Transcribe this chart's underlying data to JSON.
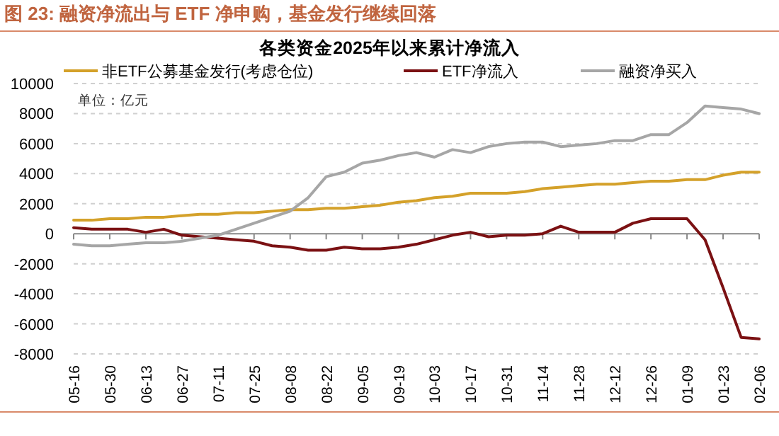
{
  "chart_data": {
    "type": "line",
    "title": "图 23: 融资净流出与 ETF 净申购，基金发行继续回落",
    "subtitle": "各类资金2025年以来累计净流入",
    "categories": [
      "05-16",
      null,
      "05-30",
      null,
      "06-13",
      null,
      "06-27",
      null,
      "07-11",
      null,
      "07-25",
      null,
      "08-08",
      null,
      "08-22",
      null,
      "09-05",
      null,
      "09-19",
      null,
      "10-03",
      null,
      "10-17",
      null,
      "10-31",
      null,
      "11-14",
      null,
      "11-28",
      null,
      "12-12",
      null,
      "12-26",
      null,
      "01-09",
      null,
      "01-23",
      null,
      "02-06"
    ],
    "series": [
      {
        "name": "非ETF公募基金发行(考虑仓位)",
        "color": "#d4a12a",
        "values": [
          900,
          900,
          1000,
          1000,
          1100,
          1100,
          1200,
          1300,
          1300,
          1400,
          1400,
          1500,
          1600,
          1600,
          1700,
          1700,
          1800,
          1900,
          2100,
          2200,
          2400,
          2500,
          2700,
          2700,
          2700,
          2800,
          3000,
          3100,
          3200,
          3300,
          3300,
          3400,
          3500,
          3500,
          3600,
          3600,
          3900,
          4100,
          4100
        ]
      },
      {
        "name": "ETF净流入",
        "color": "#7b1113",
        "values": [
          400,
          300,
          300,
          300,
          100,
          300,
          -100,
          -200,
          -300,
          -400,
          -500,
          -800,
          -900,
          -1100,
          -1100,
          -900,
          -1000,
          -1000,
          -900,
          -700,
          -400,
          -100,
          100,
          -200,
          -100,
          -100,
          0,
          500,
          100,
          100,
          100,
          700,
          1000,
          1000,
          1000,
          -400,
          -3600,
          -6900,
          -7000
        ]
      },
      {
        "name": "融资净买入",
        "color": "#a6a6a6",
        "values": [
          -700,
          -800,
          -800,
          -700,
          -600,
          -600,
          -500,
          -300,
          -100,
          300,
          700,
          1100,
          1500,
          2400,
          3800,
          4100,
          4700,
          4900,
          5200,
          5400,
          5100,
          5600,
          5400,
          5800,
          6000,
          6100,
          6100,
          5800,
          5900,
          6000,
          6200,
          6200,
          6600,
          6600,
          7400,
          8500,
          8400,
          8300,
          8000
        ]
      }
    ],
    "ylim": [
      -8000,
      10000
    ],
    "yticks": [
      -8000,
      -6000,
      -4000,
      -2000,
      0,
      2000,
      4000,
      6000,
      8000,
      10000
    ],
    "grid": "y",
    "legend": "top",
    "marker": "none",
    "line_style": "solid",
    "annotations": [
      "单位：亿元"
    ]
  }
}
